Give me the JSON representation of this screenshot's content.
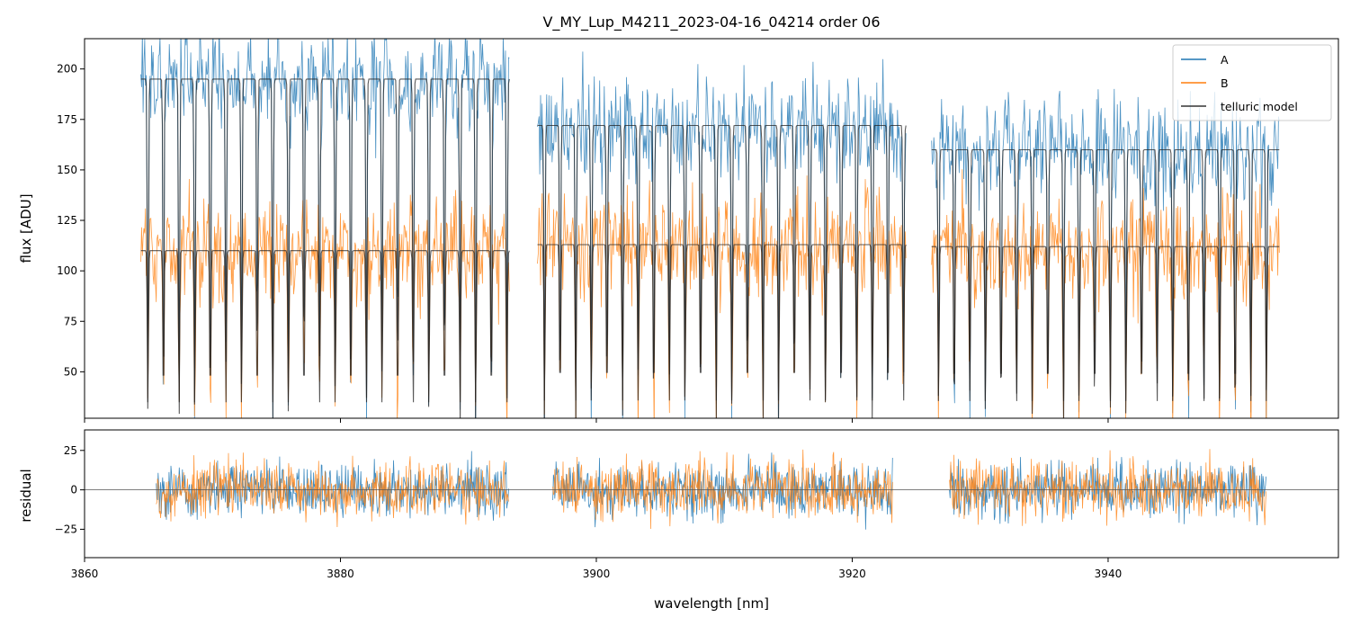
{
  "chart_data": [
    {
      "type": "line",
      "title": "V_MY_Lup_M4211_2023-04-16_04214  order 06",
      "xlabel": "",
      "ylabel": "flux [ADU]",
      "xlim": [
        3860,
        3958
      ],
      "ylim": [
        27,
        215
      ],
      "yticks": [
        50,
        75,
        100,
        125,
        150,
        175,
        200
      ],
      "legend": {
        "location": "top-right",
        "entries": [
          "A",
          "B",
          "telluric model"
        ]
      },
      "colors": {
        "A": "#1f77b4",
        "B": "#ff7f0e",
        "model": "#333333"
      },
      "segments": [
        {
          "x_start": 3864.4,
          "x_end": 3893.2,
          "A_continuum": 195,
          "B_continuum": 110
        },
        {
          "x_start": 3895.4,
          "x_end": 3924.2,
          "A_continuum": 172,
          "B_continuum": 113
        },
        {
          "x_start": 3926.2,
          "x_end": 3953.4,
          "A_continuum": 160,
          "B_continuum": 112
        }
      ],
      "line_spacing_nm": 1.22,
      "noise_amplitude": {
        "A": 22,
        "B": 22
      },
      "series": [
        {
          "name": "A",
          "description": "observed spectrum A, continuum ~195/172/160 ADU per segment"
        },
        {
          "name": "B",
          "description": "observed spectrum B, continuum ~110 ADU"
        },
        {
          "name": "telluric model",
          "description": "model with regularly spaced deep absorption lines"
        }
      ]
    },
    {
      "type": "line",
      "title": "",
      "xlabel": "wavelength [nm]",
      "ylabel": "residual",
      "xlim": [
        3860,
        3958
      ],
      "ylim": [
        -43,
        38
      ],
      "xticks": [
        3860,
        3880,
        3900,
        3920,
        3940
      ],
      "yticks": [
        -25,
        0,
        25
      ],
      "zero_line": true,
      "segments": [
        {
          "x_start": 3865.6,
          "x_end": 3893.2
        },
        {
          "x_start": 3896.6,
          "x_end": 3923.2
        },
        {
          "x_start": 3927.6,
          "x_end": 3952.4
        }
      ],
      "series": [
        {
          "name": "A",
          "description": "residual of A, noise ~ +/-20"
        },
        {
          "name": "B",
          "description": "residual of B, noise ~ +/-20"
        }
      ]
    }
  ]
}
